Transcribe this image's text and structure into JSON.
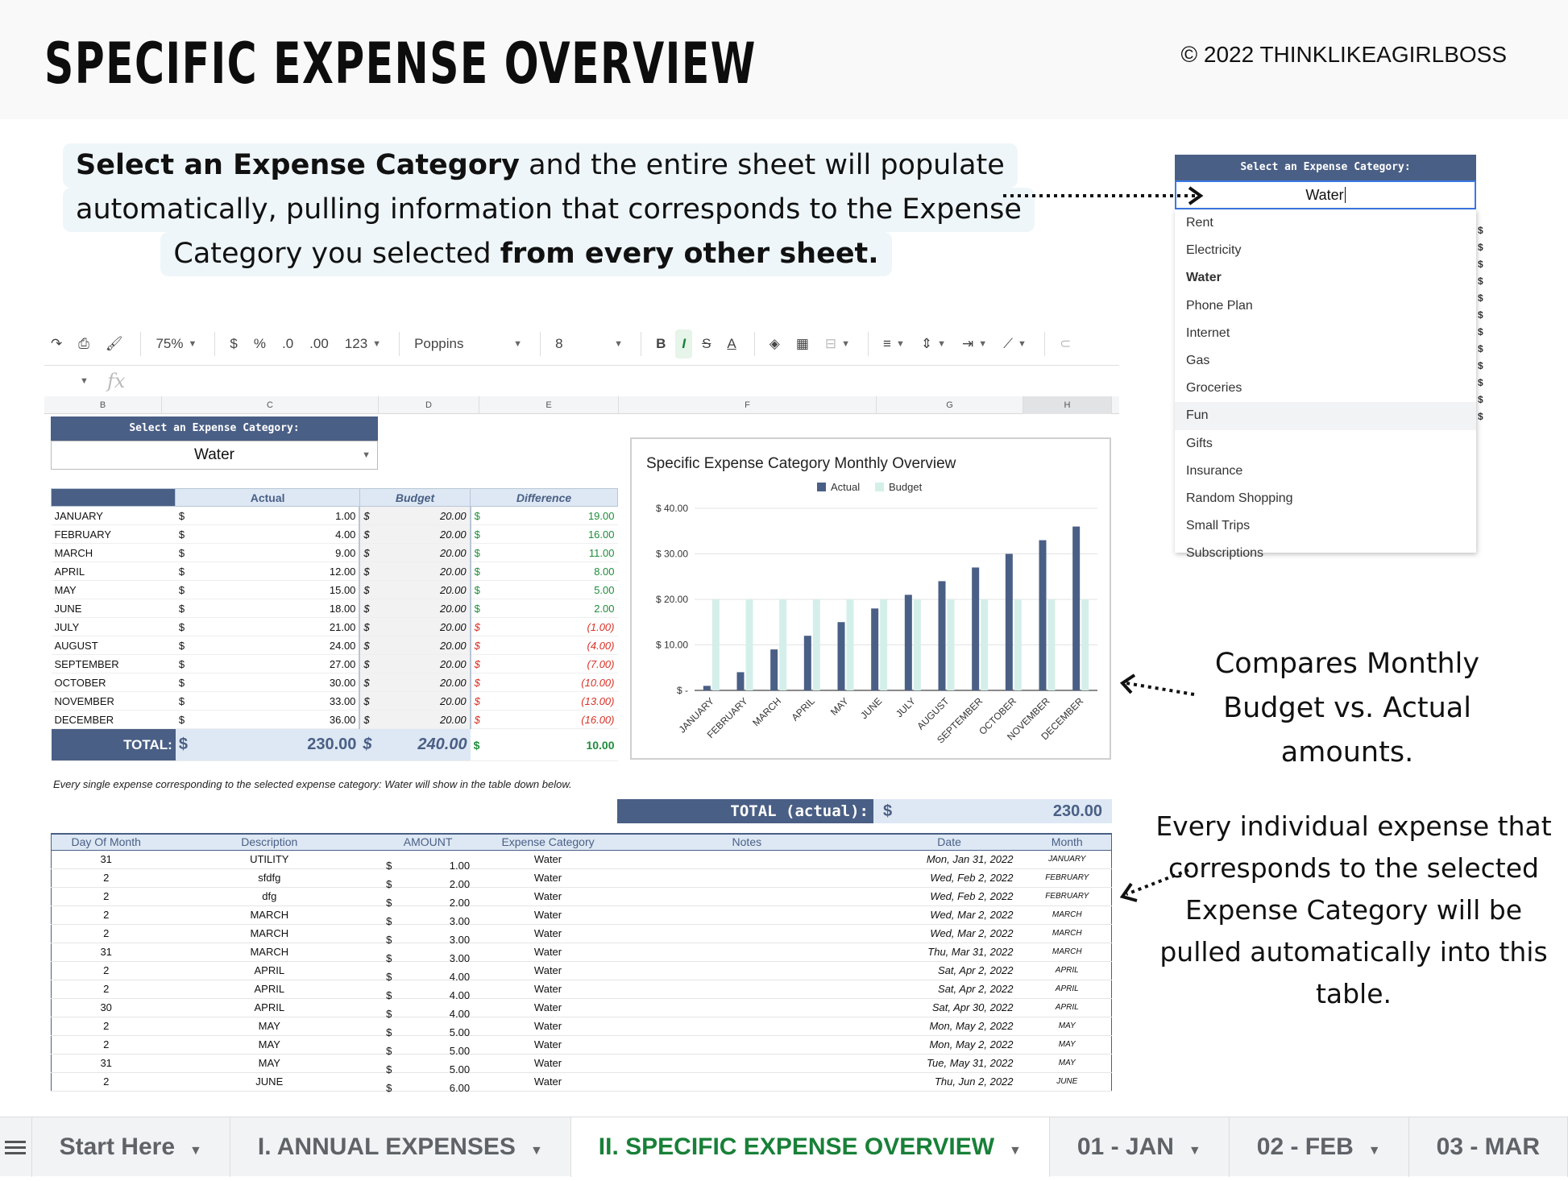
{
  "header": {
    "title": "SPECIFIC EXPENSE OVERVIEW",
    "copyright": "©  2022 THINKLIKEAGIRLBOSS"
  },
  "intro": {
    "line1_bold": "Select an Expense Category",
    "line1_rest": " and the entire sheet will populate",
    "line2": "automatically, pulling information that corresponds to the Expense",
    "line3_rest": "Category you selected ",
    "line3_bold": "from every other sheet."
  },
  "toolbar": {
    "zoom": "75%",
    "currency": "$",
    "percent": "%",
    "dec_less": ".0",
    "dec_more": ".00",
    "format_more": "123",
    "font": "Poppins",
    "font_size": "8",
    "bold": "B",
    "italic": "I",
    "strike": "S",
    "text_color": "A"
  },
  "columns": [
    "B",
    "C",
    "D",
    "E",
    "F",
    "G",
    "H"
  ],
  "selector": {
    "label": "Select an Expense Category:",
    "value": "Water"
  },
  "summary": {
    "headers": {
      "actual": "Actual",
      "budget": "Budget",
      "difference": "Difference"
    },
    "currency": "$",
    "rows": [
      {
        "month": "JANUARY",
        "actual": "1.00",
        "budget": "20.00",
        "diff": "19.00",
        "neg": false
      },
      {
        "month": "FEBRUARY",
        "actual": "4.00",
        "budget": "20.00",
        "diff": "16.00",
        "neg": false
      },
      {
        "month": "MARCH",
        "actual": "9.00",
        "budget": "20.00",
        "diff": "11.00",
        "neg": false
      },
      {
        "month": "APRIL",
        "actual": "12.00",
        "budget": "20.00",
        "diff": "8.00",
        "neg": false
      },
      {
        "month": "MAY",
        "actual": "15.00",
        "budget": "20.00",
        "diff": "5.00",
        "neg": false
      },
      {
        "month": "JUNE",
        "actual": "18.00",
        "budget": "20.00",
        "diff": "2.00",
        "neg": false
      },
      {
        "month": "JULY",
        "actual": "21.00",
        "budget": "20.00",
        "diff": "(1.00)",
        "neg": true
      },
      {
        "month": "AUGUST",
        "actual": "24.00",
        "budget": "20.00",
        "diff": "(4.00)",
        "neg": true
      },
      {
        "month": "SEPTEMBER",
        "actual": "27.00",
        "budget": "20.00",
        "diff": "(7.00)",
        "neg": true
      },
      {
        "month": "OCTOBER",
        "actual": "30.00",
        "budget": "20.00",
        "diff": "(10.00)",
        "neg": true
      },
      {
        "month": "NOVEMBER",
        "actual": "33.00",
        "budget": "20.00",
        "diff": "(13.00)",
        "neg": true
      },
      {
        "month": "DECEMBER",
        "actual": "36.00",
        "budget": "20.00",
        "diff": "(16.00)",
        "neg": true
      }
    ],
    "total": {
      "label": "TOTAL:",
      "actual": "230.00",
      "budget": "240.00",
      "diff": "10.00"
    }
  },
  "chart_data": {
    "type": "bar",
    "title": "Specific Expense Category Monthly Overview",
    "categories": [
      "JANUARY",
      "FEBRUARY",
      "MARCH",
      "APRIL",
      "MAY",
      "JUNE",
      "JULY",
      "AUGUST",
      "SEPTEMBER",
      "OCTOBER",
      "NOVEMBER",
      "DECEMBER"
    ],
    "series": [
      {
        "name": "Actual",
        "color": "#4a5f85",
        "values": [
          1,
          4,
          9,
          12,
          15,
          18,
          21,
          24,
          27,
          30,
          33,
          36
        ]
      },
      {
        "name": "Budget",
        "color": "#d4efe9",
        "values": [
          20,
          20,
          20,
          20,
          20,
          20,
          20,
          20,
          20,
          20,
          20,
          20
        ]
      }
    ],
    "ylim": [
      0,
      40
    ],
    "yticks": [
      0,
      10,
      20,
      30,
      40
    ],
    "ytick_labels": [
      "$ -",
      "$ 10.00",
      "$ 20.00",
      "$ 30.00",
      "$ 40.00"
    ],
    "xlabel": "",
    "ylabel": "",
    "legend": "top-center",
    "grid": true
  },
  "note": "Every single expense corresponding to the selected expense category: Water will show in the table down below.",
  "total_actual": {
    "label": "TOTAL (actual):",
    "currency": "$",
    "value": "230.00"
  },
  "detail": {
    "headers": [
      "Day Of Month",
      "Description",
      "AMOUNT",
      "Expense Category",
      "Notes",
      "Date",
      "Month"
    ],
    "rows": [
      [
        "31",
        "UTILITY",
        "1.00",
        "Water",
        "",
        "Mon, Jan 31, 2022",
        "JANUARY"
      ],
      [
        "2",
        "sfdfg",
        "2.00",
        "Water",
        "",
        "Wed, Feb 2, 2022",
        "FEBRUARY"
      ],
      [
        "2",
        "dfg",
        "2.00",
        "Water",
        "",
        "Wed, Feb 2, 2022",
        "FEBRUARY"
      ],
      [
        "2",
        "MARCH",
        "3.00",
        "Water",
        "",
        "Wed, Mar 2, 2022",
        "MARCH"
      ],
      [
        "2",
        "MARCH",
        "3.00",
        "Water",
        "",
        "Wed, Mar 2, 2022",
        "MARCH"
      ],
      [
        "31",
        "MARCH",
        "3.00",
        "Water",
        "",
        "Thu, Mar 31, 2022",
        "MARCH"
      ],
      [
        "2",
        "APRIL",
        "4.00",
        "Water",
        "",
        "Sat, Apr 2, 2022",
        "APRIL"
      ],
      [
        "2",
        "APRIL",
        "4.00",
        "Water",
        "",
        "Sat, Apr 2, 2022",
        "APRIL"
      ],
      [
        "30",
        "APRIL",
        "4.00",
        "Water",
        "",
        "Sat, Apr 30, 2022",
        "APRIL"
      ],
      [
        "2",
        "MAY",
        "5.00",
        "Water",
        "",
        "Mon, May 2, 2022",
        "MAY"
      ],
      [
        "2",
        "MAY",
        "5.00",
        "Water",
        "",
        "Mon, May 2, 2022",
        "MAY"
      ],
      [
        "31",
        "MAY",
        "5.00",
        "Water",
        "",
        "Tue, May 31, 2022",
        "MAY"
      ],
      [
        "2",
        "JUNE",
        "6.00",
        "Water",
        "",
        "Thu, Jun 2, 2022",
        "JUNE"
      ]
    ]
  },
  "dropdown": {
    "label": "Select an Expense Category:",
    "input": "Water",
    "items": [
      "Rent",
      "Electricity",
      "Water",
      "Phone Plan",
      "Internet",
      "Gas",
      "Groceries",
      "Fun",
      "Gifts",
      "Insurance",
      "Random Shopping",
      "Small Trips",
      "Subscriptions"
    ],
    "selected": "Water",
    "hovered": "Fun"
  },
  "callouts": {
    "chart": "Compares Monthly Budget vs. Actual amounts.",
    "table": "Every individual expense that corresponds to the selected Expense Category will be pulled automatically into this table."
  },
  "tabs": [
    {
      "label": "Start Here",
      "active": false
    },
    {
      "label": "I. ANNUAL EXPENSES",
      "active": false
    },
    {
      "label": "II. SPECIFIC EXPENSE OVERVIEW",
      "active": true
    },
    {
      "label": "01 - JAN",
      "active": false
    },
    {
      "label": "02 - FEB",
      "active": false
    },
    {
      "label": "03 - MAR",
      "active": false
    }
  ]
}
